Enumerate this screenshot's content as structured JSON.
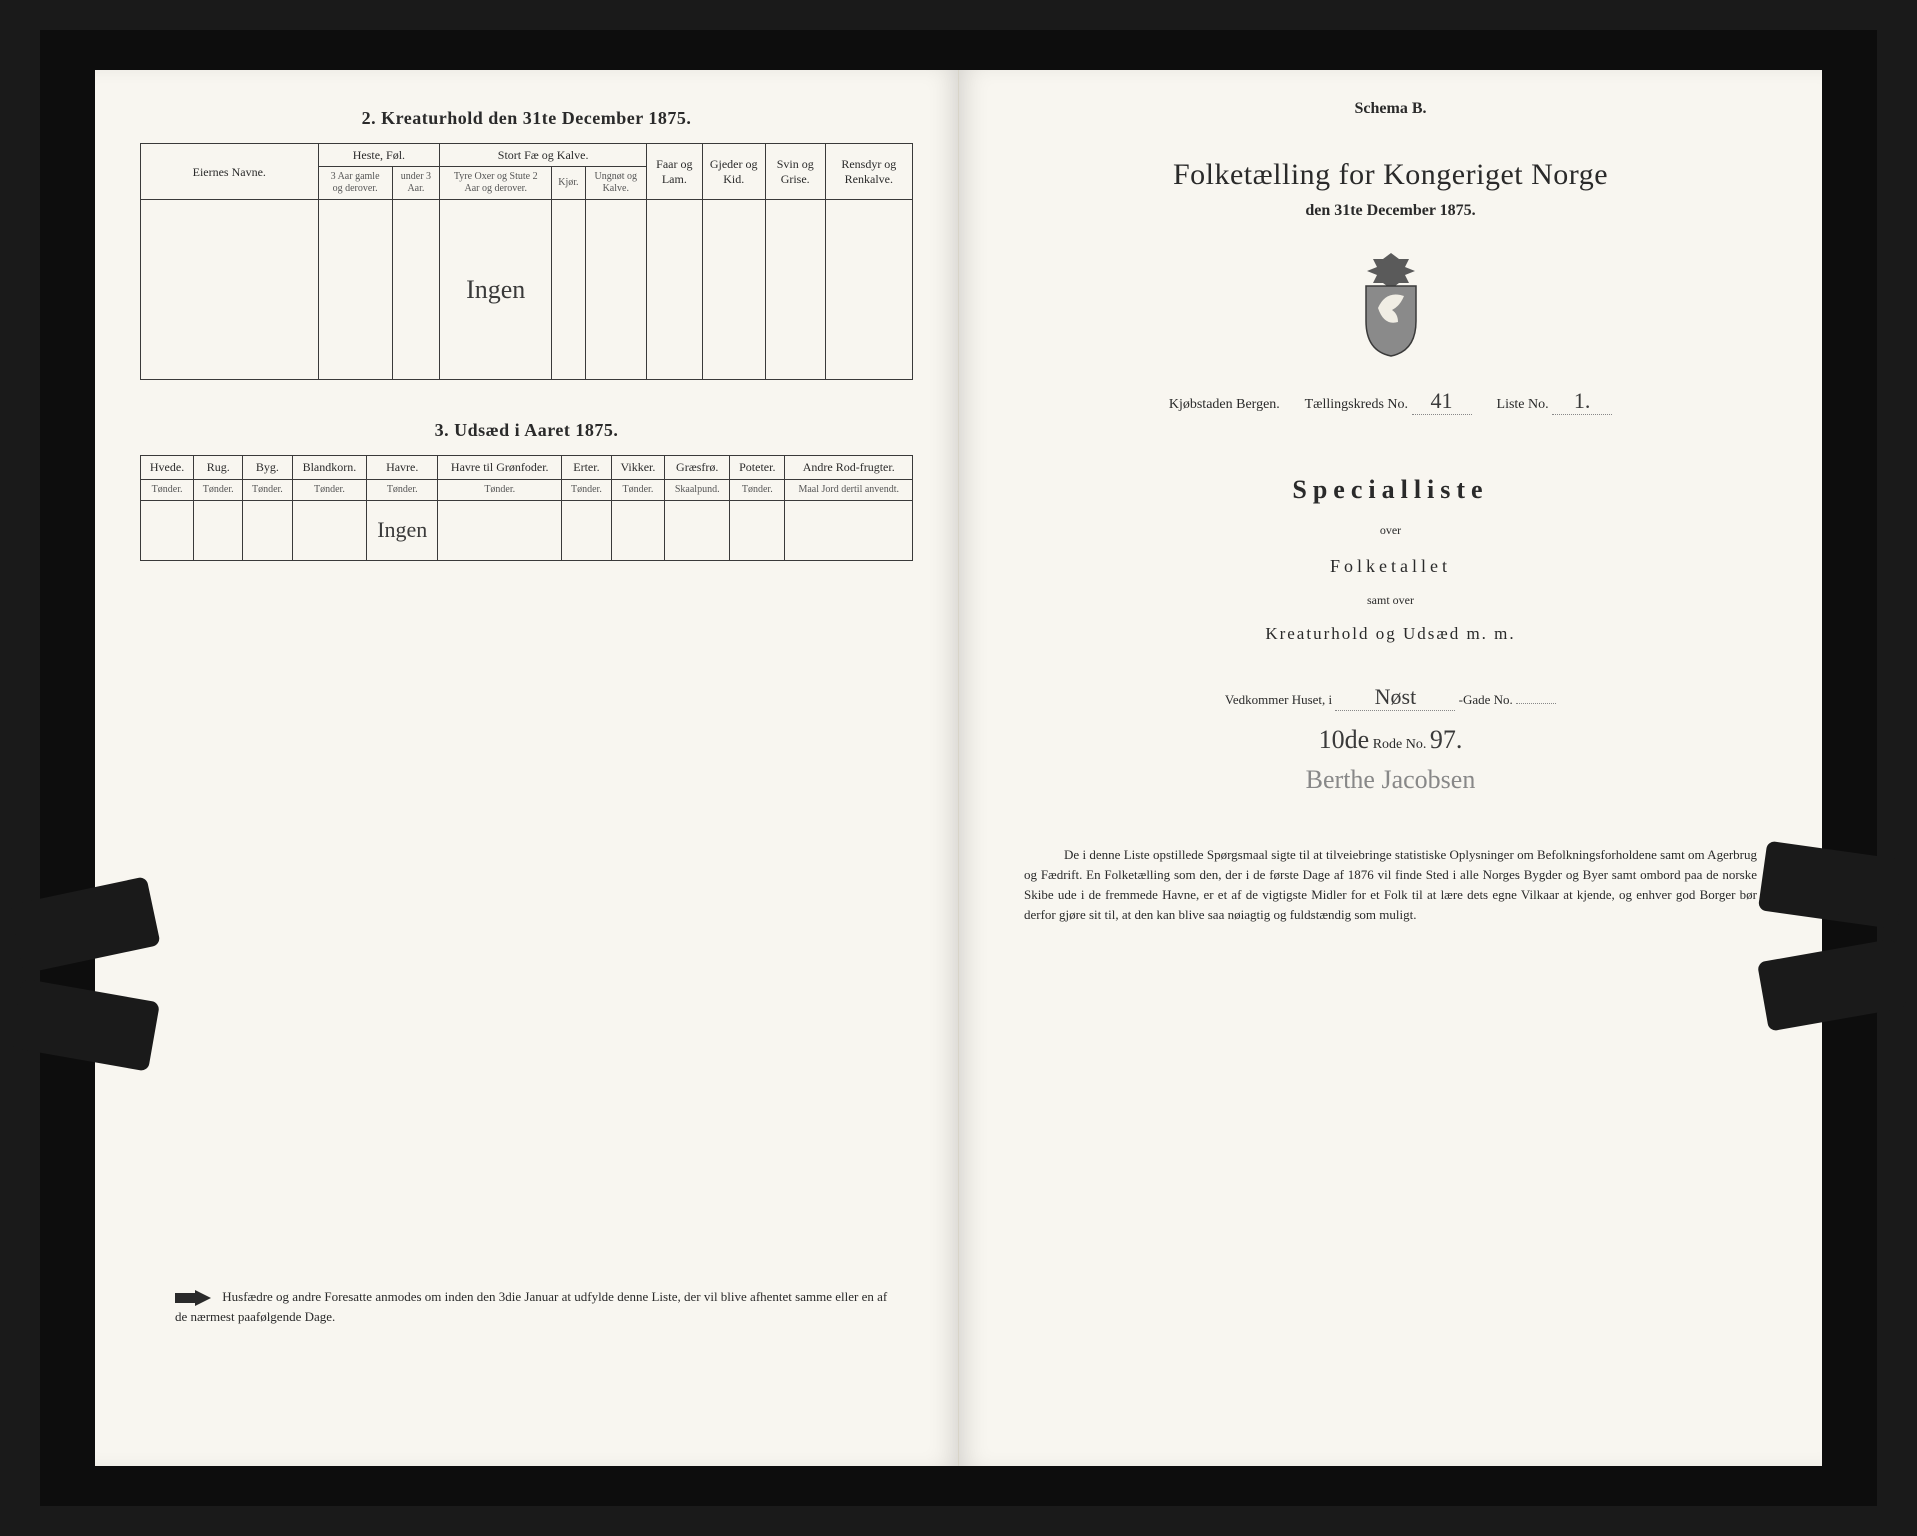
{
  "left": {
    "section2_title": "2.  Kreaturhold den 31te December 1875.",
    "table2": {
      "col_owner": "Eiernes Navne.",
      "grp_heste": "Heste, Føl.",
      "grp_fae": "Stort Fæ og Kalve.",
      "col_faar": "Faar og Lam.",
      "col_gjeder": "Gjeder og Kid.",
      "col_svin": "Svin og Grise.",
      "col_rensdyr": "Rensdyr og Renkalve.",
      "sub_heste1": "3 Aar gamle og derover.",
      "sub_heste2": "under 3 Aar.",
      "sub_fae1": "Tyre Oxer og Stute 2 Aar og derover.",
      "sub_fae2": "Kjør.",
      "sub_fae3": "Ungnøt og Kalve.",
      "cell_hw": "Ingen"
    },
    "section3_title": "3.  Udsæd i Aaret 1875.",
    "table3": {
      "cols": [
        "Hvede.",
        "Rug.",
        "Byg.",
        "Blandkorn.",
        "Havre.",
        "Havre til Grønfoder.",
        "Erter.",
        "Vikker.",
        "Græsfrø.",
        "Poteter.",
        "Andre Rod-frugter."
      ],
      "units": [
        "Tønder.",
        "Tønder.",
        "Tønder.",
        "Tønder.",
        "Tønder.",
        "Tønder.",
        "Tønder.",
        "Tønder.",
        "Skaalpund.",
        "Tønder.",
        "Maal Jord dertil anvendt."
      ],
      "cell_hw": "Ingen"
    },
    "footer": "Husfædre og andre Foresatte anmodes om inden den 3die Januar at udfylde denne Liste, der vil blive afhentet samme eller en af de nærmest paafølgende Dage."
  },
  "right": {
    "schema": "Schema B.",
    "title": "Folketælling for Kongeriget Norge",
    "date": "den 31te December 1875.",
    "meta_city": "Kjøbstaden Bergen.",
    "meta_kreds_lbl": "Tællingskreds No.",
    "meta_kreds_val": "41",
    "meta_liste_lbl": "Liste No.",
    "meta_liste_val": "1.",
    "special": "Specialliste",
    "over": "over",
    "folketallet": "Folketallet",
    "samt": "samt over",
    "kreatur": "Kreaturhold og Udsæd m. m.",
    "vedk_lbl": "Vedkommer Huset, i",
    "vedk_val": "Nøst",
    "gade_lbl": "-Gade No.",
    "rode_val": "10de",
    "rode_lbl": "Rode No.",
    "rode_no": "97.",
    "signature": "Berthe Jacobsen",
    "para": "De i denne Liste opstillede Spørgsmaal sigte til at tilveiebringe statistiske Oplysninger om Befolkningsforholdene samt om Agerbrug og Fædrift.  En Folketælling som den, der i de første Dage af 1876 vil finde Sted i alle Norges Bygder og Byer samt ombord paa de norske Skibe ude i de fremmede Havne, er et af de vigtigste Midler for et Folk til at lære dets egne Vilkaar at kjende, og enhver god Borger bør derfor gjøre sit til, at den kan blive saa nøiagtig og fuldstændig som muligt."
  }
}
